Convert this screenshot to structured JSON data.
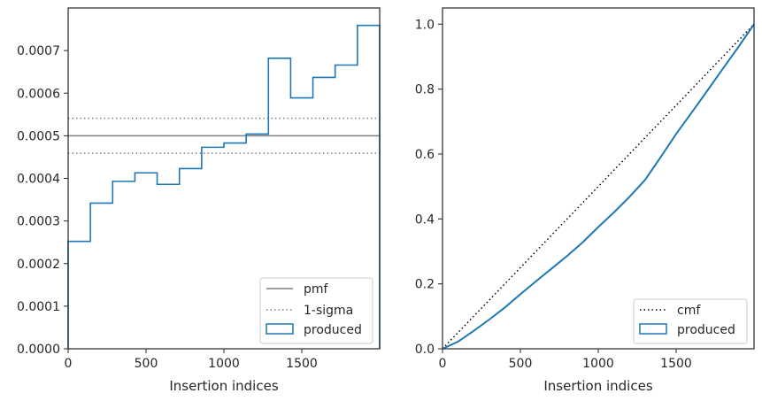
{
  "chart_data": [
    {
      "type": "step",
      "xlabel": "Insertion indices",
      "ylabel": "",
      "xlim": [
        0,
        2000
      ],
      "ylim": [
        0,
        0.0008
      ],
      "xticks": [
        0,
        500,
        1000,
        1500
      ],
      "yticks": [
        "0.0000",
        "0.0001",
        "0.0002",
        "0.0003",
        "0.0004",
        "0.0005",
        "0.0006",
        "0.0007"
      ],
      "ytick_values": [
        0,
        0.0001,
        0.0002,
        0.0003,
        0.0004,
        0.0005,
        0.0006,
        0.0007
      ],
      "xtick_labels": [
        "0",
        "500",
        "1000",
        "1500"
      ],
      "pmf": 0.0005,
      "sigma_band": [
        0.000459,
        0.000541
      ],
      "bin_edges": [
        0,
        142.86,
        285.71,
        428.57,
        571.43,
        714.29,
        857.14,
        1000,
        1142.86,
        1285.71,
        1428.57,
        1571.43,
        1714.29,
        1857.14,
        2000
      ],
      "produced": [
        0.000252,
        0.000342,
        0.000393,
        0.000413,
        0.000386,
        0.000423,
        0.000473,
        0.000483,
        0.000504,
        0.000682,
        0.000589,
        0.000637,
        0.000666,
        0.000759
      ],
      "legend": [
        "pmf",
        "1-sigma",
        "produced"
      ],
      "legend_position": "lower-right",
      "colors": {
        "pmf": "#808080",
        "sigma": "#808080",
        "produced": "#1f77b4"
      }
    },
    {
      "type": "line",
      "xlabel": "Insertion indices",
      "ylabel": "",
      "xlim": [
        0,
        2000
      ],
      "ylim": [
        0,
        1.05
      ],
      "xticks": [
        0,
        500,
        1000,
        1500
      ],
      "xtick_labels": [
        "0",
        "500",
        "1000",
        "1500"
      ],
      "yticks": [
        "0.0",
        "0.2",
        "0.4",
        "0.6",
        "0.8",
        "1.0"
      ],
      "ytick_values": [
        0,
        0.2,
        0.4,
        0.6,
        0.8,
        1.0
      ],
      "cmf": {
        "x": [
          0,
          2000
        ],
        "y": [
          0,
          1.0
        ]
      },
      "produced": {
        "x": [
          0,
          100,
          200,
          300,
          400,
          500,
          600,
          700,
          800,
          900,
          1000,
          1100,
          1200,
          1300,
          1400,
          1500,
          1600,
          1700,
          1800,
          1900,
          2000
        ],
        "y": [
          0,
          0.022,
          0.055,
          0.09,
          0.127,
          0.168,
          0.208,
          0.247,
          0.286,
          0.328,
          0.375,
          0.42,
          0.468,
          0.52,
          0.59,
          0.662,
          0.728,
          0.795,
          0.863,
          0.93,
          1.0
        ]
      },
      "legend": [
        "cmf",
        "produced"
      ],
      "legend_position": "lower-right",
      "colors": {
        "cmf": "#000000",
        "produced": "#1f77b4"
      }
    }
  ]
}
